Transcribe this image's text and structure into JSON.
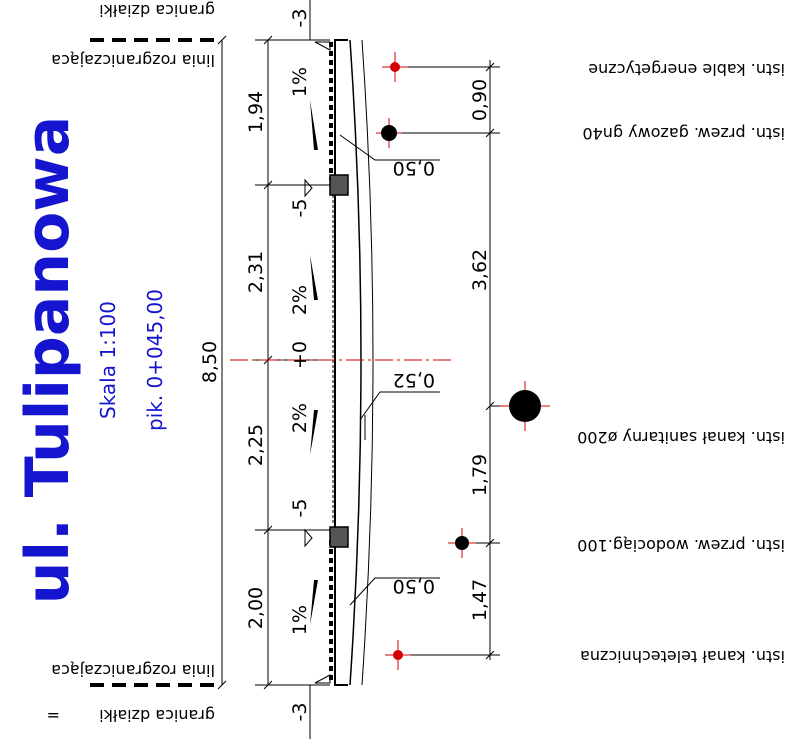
{
  "title": "ul. Tulipanowa",
  "scale": "Skala 1:100",
  "station": "pik. 0+045,00",
  "boundary_top": {
    "line": "linia rozgraniczająca",
    "plot": "granica działki"
  },
  "boundary_bottom": {
    "line": "linia rozgraniczająca",
    "plot": "granica działki",
    "mark": "="
  },
  "total_width": "8,50",
  "segments": [
    "1,94",
    "2,31",
    "2,25",
    "2,00"
  ],
  "slopes": [
    "1%",
    "2%",
    "2%",
    "1%"
  ],
  "curb_heights": [
    "-5",
    "-5"
  ],
  "edge_heights": [
    "-3",
    "-3"
  ],
  "axis_height": "+0",
  "depths": [
    "0,50",
    "0,52",
    "0,50"
  ],
  "utility_spacing": [
    "0,90",
    "3,62",
    "1,79",
    "1,47"
  ],
  "utilities": [
    "istn. kable energetyczne",
    "istn. przew. gazowy gn40",
    "istn. kanał sanitarny ø200",
    "istn. przew. wodociąg.100",
    "istn. kanał teletechniczna"
  ],
  "colors": {
    "title": "#1515d0",
    "utility_mark": "#d40000",
    "axis": "#cc0000"
  }
}
